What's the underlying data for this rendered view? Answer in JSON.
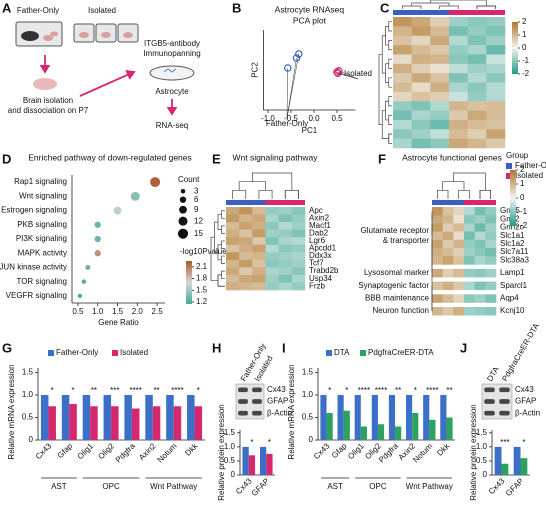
{
  "panel_a": {
    "label": "A",
    "group1": "Father-Only",
    "group2": "Isolated",
    "step1": [
      "Brain isolation",
      "and dissociation on P7"
    ],
    "step2": [
      "ITGB5-antibody",
      "Immunopanning"
    ],
    "cell": "Astrocyte",
    "step3": "RNA-seq"
  },
  "chart_data": [
    {
      "label": "B",
      "type": "scatter",
      "title": "Astrocyte RNAseq",
      "subtitle": "PCA plot",
      "xlabel": "PC1",
      "ylabel": "PC2",
      "xlim": [
        -1.1,
        0.9
      ],
      "xticks": [
        {
          "value": -1,
          "label": "-1.0"
        },
        -0.5,
        {
          "value": 0,
          "label": "0.0"
        },
        0.5
      ],
      "ylim": [
        -1,
        1
      ],
      "series": [
        {
          "name": "Father-Only",
          "color": "#3b5fc0",
          "x": [
            -0.57,
            -0.38,
            -0.33
          ],
          "values": [
            0.05,
            0.3,
            0.4
          ]
        },
        {
          "name": "Isolated",
          "color": "#d6286e",
          "x": [
            0.5,
            0.52,
            0.54
          ],
          "values": [
            -0.05,
            -0.08,
            -0.02
          ]
        }
      ]
    },
    {
      "label": "C",
      "type": "heatmap",
      "zlim": [
        -2,
        2
      ],
      "zticks": [
        2,
        1,
        0,
        -1,
        -2
      ],
      "colors": [
        "#1f9a8a",
        "#f4f4ef",
        "#b0762a"
      ],
      "legend_title": "Group",
      "series": [
        {
          "name": "Father-Only",
          "color": "#3b5fc0",
          "values": [
            [
              1.5,
              1.2,
              0.6
            ],
            [
              1.0,
              1.4,
              0.9
            ],
            [
              0.8,
              0.5,
              1.2
            ],
            [
              1.3,
              0.9,
              0.7
            ],
            [
              0.4,
              1.1,
              1.0
            ],
            [
              1.1,
              0.6,
              0.3
            ],
            [
              0.7,
              1.2,
              0.8
            ],
            [
              0.9,
              0.4,
              1.1
            ],
            [
              0.5,
              0.8,
              0.6
            ],
            [
              -0.9,
              -1.1,
              -0.6
            ],
            [
              -1.2,
              -0.7,
              -0.9
            ],
            [
              -0.6,
              -1.0,
              -1.3
            ],
            [
              -1.0,
              -0.8,
              -0.5
            ],
            [
              -0.7,
              -1.2,
              -1.0
            ]
          ]
        },
        {
          "name": "Isolated",
          "color": "#d6286e",
          "values": [
            [
              -0.8,
              -1.0,
              -0.9
            ],
            [
              -1.2,
              -0.9,
              -1.1
            ],
            [
              -0.6,
              -1.1,
              -0.8
            ],
            [
              -0.9,
              -0.7,
              -1.3
            ],
            [
              -1.0,
              -1.2,
              -0.4
            ],
            [
              -0.5,
              -0.8,
              -0.7
            ],
            [
              -1.1,
              -0.6,
              -1.0
            ],
            [
              -0.7,
              -1.0,
              -0.6
            ],
            [
              -0.4,
              -0.9,
              -0.6
            ],
            [
              1.0,
              0.8,
              0.9
            ],
            [
              0.7,
              1.2,
              0.9
            ],
            [
              1.1,
              0.9,
              0.8
            ],
            [
              0.9,
              0.6,
              1.3
            ],
            [
              1.2,
              1.0,
              0.7
            ]
          ]
        }
      ]
    },
    {
      "label": "D",
      "type": "bubble",
      "title": "Enriched pathway of down-regulated genes",
      "xlabel": "Gene Ratio",
      "categories": [
        "Rap1 signaling",
        "Wnt signaling",
        "Estrogen signaling",
        "PKB signaling",
        "PI3K signaling",
        "MAPK activity",
        "JUN kinase activity",
        "TOR signaling",
        "VEGFR signaling"
      ],
      "values": [
        2.45,
        1.95,
        1.5,
        1.0,
        1.0,
        1.0,
        0.75,
        0.65,
        0.55
      ],
      "size": [
        15,
        12,
        9,
        6,
        6,
        6,
        4,
        3,
        3
      ],
      "color_values": [
        2.2,
        1.4,
        1.6,
        1.3,
        1.3,
        2.0,
        1.3,
        1.2,
        1.2
      ],
      "xlim": [
        0.35,
        2.7
      ],
      "xticks": [
        0.5,
        {
          "value": 1,
          "label": "1.0"
        },
        1.5,
        {
          "value": 2,
          "label": "2.0"
        },
        2.5
      ],
      "size_legend": {
        "title": "Count",
        "values": [
          3,
          6,
          9,
          12,
          15
        ]
      },
      "color_legend": {
        "title": "-log10Pvalue",
        "lim": [
          1.15,
          2.25
        ],
        "ticks": [
          2.1,
          1.8,
          1.5,
          1.2
        ],
        "colors": [
          "#48a999",
          "#d8d8d8",
          "#a8582a"
        ]
      }
    },
    {
      "label": "E",
      "type": "heatmap",
      "title": "Wnt signaling pathway",
      "zlim": [
        -2,
        2
      ],
      "colors": [
        "#1f9a8a",
        "#f4f4ef",
        "#b0762a"
      ],
      "rows": [
        "Apc",
        "Axin2",
        "Macf1",
        "Dab2",
        "Lgr6",
        "Apcdd1",
        "Ddx3x",
        "Tcf7",
        "Trabd2b",
        "Usp34",
        "Frzb"
      ],
      "series": [
        {
          "name": "Father-Only",
          "color": "#3b5fc0",
          "values": [
            [
              1.2,
              1.5,
              0.9
            ],
            [
              1.4,
              1.0,
              1.2
            ],
            [
              0.9,
              1.3,
              1.1
            ],
            [
              1.1,
              0.8,
              1.4
            ],
            [
              1.3,
              1.2,
              0.7
            ],
            [
              0.8,
              1.1,
              1.3
            ],
            [
              1.5,
              0.9,
              1.0
            ],
            [
              1.0,
              1.4,
              0.8
            ],
            [
              1.2,
              0.7,
              1.1
            ],
            [
              0.9,
              1.2,
              1.3
            ],
            [
              1.1,
              1.0,
              0.9
            ]
          ]
        },
        {
          "name": "Isolated",
          "color": "#d6286e",
          "values": [
            [
              -0.9,
              -0.8,
              -1.0
            ],
            [
              -0.7,
              -1.1,
              -0.9
            ],
            [
              -1.0,
              -0.6,
              -0.8
            ],
            [
              -0.8,
              -0.9,
              -1.1
            ],
            [
              -1.1,
              -0.7,
              -0.6
            ],
            [
              -0.6,
              -1.0,
              -0.9
            ],
            [
              -0.9,
              -0.8,
              -0.7
            ],
            [
              -1.0,
              -0.9,
              -0.8
            ],
            [
              -0.7,
              -0.8,
              -1.0
            ],
            [
              -0.8,
              -1.1,
              -0.7
            ],
            [
              -0.9,
              -0.7,
              -0.9
            ]
          ]
        }
      ]
    },
    {
      "label": "F",
      "type": "heatmap",
      "title": "Astrocyte functional genes",
      "zlim": [
        -2,
        2
      ],
      "zticks": [
        2,
        1,
        0,
        -1,
        -2
      ],
      "colors": [
        "#1f9a8a",
        "#f4f4ef",
        "#b0762a"
      ],
      "row_groups": [
        {
          "label": [
            "Glutamate receptor",
            "& transporter"
          ],
          "rows": [
            "Grm5",
            "Gria2",
            "Grin2c",
            "Slc1a1",
            "Slc1a2",
            "Slc7a11",
            "Slc38a3"
          ]
        },
        {
          "label": [
            "Lysosomal marker"
          ],
          "rows": [
            "Lamp1"
          ]
        },
        {
          "label": [
            "Synaptogenic factor"
          ],
          "rows": [
            "Sparcl1"
          ]
        },
        {
          "label": [
            "BBB maintenance"
          ],
          "rows": [
            "Aqp4"
          ]
        },
        {
          "label": [
            "Neuron function"
          ],
          "rows": [
            "Kcnj10"
          ]
        }
      ],
      "series": [
        {
          "name": "Father-Only",
          "color": "#3b5fc0",
          "values": [
            [
              1.5,
              0.8,
              0.5
            ],
            [
              1.2,
              1.0,
              0.3
            ],
            [
              1.4,
              0.6,
              0.9
            ],
            [
              0.9,
              1.2,
              0.4
            ],
            [
              1.3,
              0.7,
              1.0
            ],
            [
              1.1,
              0.9,
              0.6
            ],
            [
              1.0,
              1.3,
              0.8
            ],
            [
              1.2,
              0.6,
              0.9
            ],
            [
              0.8,
              1.1,
              0.7
            ],
            [
              1.3,
              0.9,
              0.5
            ],
            [
              1.0,
              0.7,
              1.1
            ]
          ]
        },
        {
          "name": "Isolated",
          "color": "#d6286e",
          "values": [
            [
              -0.6,
              -1.2,
              -0.9
            ],
            [
              -1.0,
              -0.8,
              -1.1
            ],
            [
              -0.7,
              -1.3,
              -0.8
            ],
            [
              -1.2,
              -0.6,
              -0.9
            ],
            [
              -0.9,
              -1.1,
              -0.7
            ],
            [
              -0.8,
              -1.0,
              -1.2
            ],
            [
              -1.1,
              -0.7,
              -0.9
            ],
            [
              -0.9,
              -1.0,
              -0.8
            ],
            [
              -0.7,
              -1.1,
              -0.9
            ],
            [
              -1.0,
              -0.8,
              -1.1
            ],
            [
              -0.8,
              -0.9,
              -1.0
            ]
          ]
        }
      ]
    },
    {
      "label": "G",
      "type": "bar",
      "ylabel": "Relative mRNA expression",
      "ylim": [
        0,
        1.6
      ],
      "yticks": [
        0,
        0.5,
        {
          "value": 1,
          "label": "1.0"
        },
        1.5
      ],
      "legend": true,
      "groups": [
        {
          "label": "AST",
          "categories": [
            "Cx43",
            "Gfap"
          ]
        },
        {
          "label": "OPC",
          "categories": [
            "Olig1",
            "Olig2",
            "Pdgfra"
          ]
        },
        {
          "label": "Wnt Pathway",
          "categories": [
            "Axin2",
            "Notum",
            "Dkk"
          ]
        }
      ],
      "series": [
        {
          "name": "Father-Only",
          "color": "#3b6fc8",
          "values": [
            1,
            1,
            1,
            1,
            1,
            1,
            1,
            1
          ]
        },
        {
          "name": "Isolated",
          "color": "#d6286e",
          "values": [
            0.75,
            0.8,
            0.75,
            0.75,
            0.7,
            0.75,
            0.75,
            0.75
          ]
        }
      ],
      "significance": [
        "*",
        "*",
        "**",
        "***",
        "****",
        "**",
        "****",
        "*"
      ]
    },
    {
      "label": "H",
      "type": "bar",
      "ylabel": "Relative protein expression",
      "ylim": [
        0,
        1.6
      ],
      "yticks": [
        0,
        0.5,
        {
          "value": 1,
          "label": "1.0"
        },
        1.5
      ],
      "legend": false,
      "blot": {
        "lanes": [
          "Father-Only",
          "Isolated"
        ],
        "bands": [
          "Cx43",
          "GFAP",
          "β-Actin"
        ]
      },
      "categories": [
        "Cx43",
        "GFAP"
      ],
      "series": [
        {
          "name": "Father-Only",
          "color": "#3b6fc8",
          "values": [
            1,
            1
          ]
        },
        {
          "name": "Isolated",
          "color": "#d6286e",
          "values": [
            0.7,
            0.75
          ]
        }
      ],
      "significance": [
        "*",
        "*"
      ]
    },
    {
      "label": "I",
      "type": "bar",
      "ylabel": "Relative mRNA expression",
      "ylim": [
        0,
        1.6
      ],
      "yticks": [
        0,
        0.5,
        {
          "value": 1,
          "label": "1.0"
        },
        1.5
      ],
      "legend": true,
      "groups": [
        {
          "label": "AST",
          "categories": [
            "Cx43",
            "Gfap"
          ]
        },
        {
          "label": "OPC",
          "categories": [
            "Olig1",
            "Olig2",
            "Pdgfra"
          ]
        },
        {
          "label": "Wnt Pathway",
          "categories": [
            "Axin2",
            "Notum",
            "Dkk"
          ]
        }
      ],
      "series": [
        {
          "name": "DTA",
          "color": "#3b6fc8",
          "values": [
            1,
            1,
            1,
            1,
            1,
            1,
            1,
            1
          ]
        },
        {
          "name": "PdgfraCreER-DTA",
          "color": "#2ca25f",
          "values": [
            0.6,
            0.65,
            0.3,
            0.35,
            0.3,
            0.6,
            0.45,
            0.5
          ]
        }
      ],
      "significance": [
        "*",
        "*",
        "****",
        "****",
        "**",
        "*",
        "****",
        "**"
      ]
    },
    {
      "label": "J",
      "type": "bar",
      "ylabel": "Relative protein expression",
      "ylim": [
        0,
        1.6
      ],
      "yticks": [
        0,
        0.5,
        {
          "value": 1,
          "label": "1.0"
        },
        1.5
      ],
      "legend": false,
      "blot": {
        "lanes": [
          "DTA",
          "PdgfraCreER-DTA"
        ],
        "bands": [
          "Cx43",
          "GFAP",
          "β-Actin"
        ]
      },
      "categories": [
        "Cx43",
        "GFAP"
      ],
      "series": [
        {
          "name": "DTA",
          "color": "#3b6fc8",
          "values": [
            1,
            1
          ]
        },
        {
          "name": "PdgfraCreER-DTA",
          "color": "#2ca25f",
          "values": [
            0.4,
            0.6
          ]
        }
      ],
      "significance": [
        "***",
        "*"
      ]
    }
  ]
}
